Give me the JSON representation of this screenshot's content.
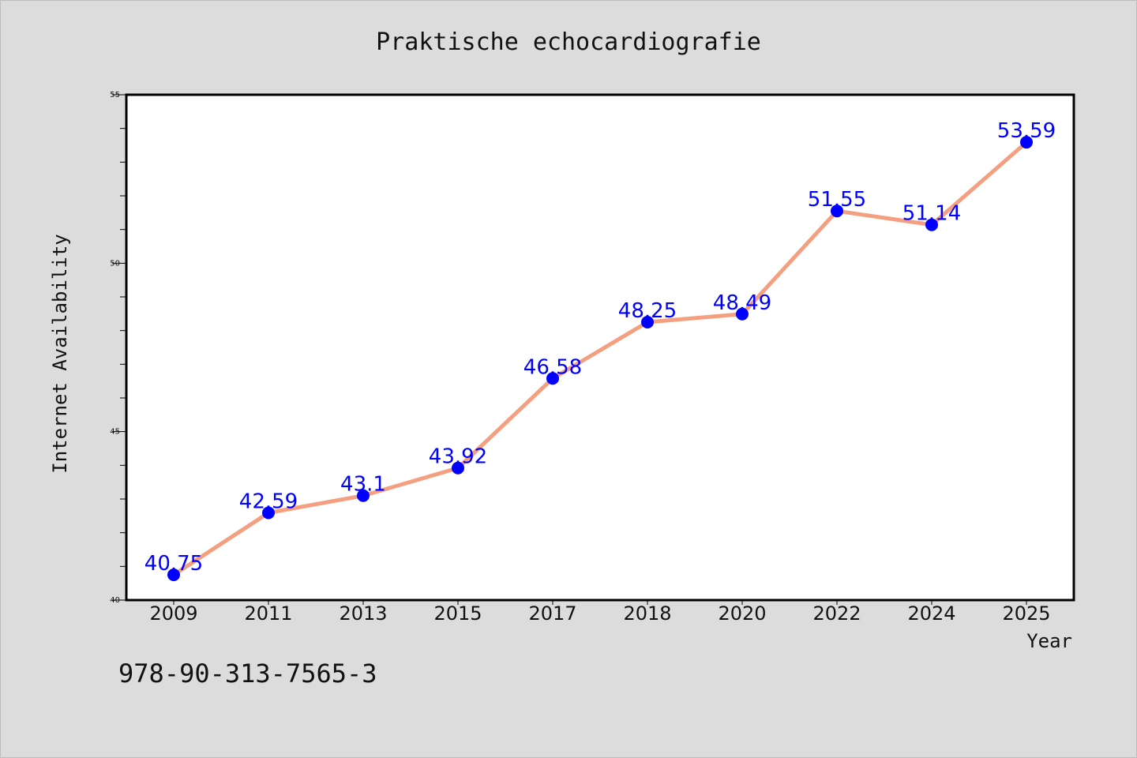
{
  "chart_data": {
    "type": "line",
    "title": "Praktische echocardiografie",
    "xlabel": "Year",
    "ylabel": "Internet Availability",
    "categories": [
      "2009",
      "2011",
      "2013",
      "2015",
      "2017",
      "2018",
      "2020",
      "2022",
      "2024",
      "2025"
    ],
    "values": [
      40.75,
      42.59,
      43.1,
      43.92,
      46.58,
      48.25,
      48.49,
      51.55,
      51.14,
      53.59
    ],
    "data_labels": [
      "40.75",
      "42.59",
      "43.1",
      "43.92",
      "46.58",
      "48.25",
      "48.49",
      "51.55",
      "51.14",
      "53.59"
    ],
    "ylim": [
      40,
      55
    ],
    "y_ticks": [
      "40",
      "45",
      "50",
      "55"
    ],
    "grid": false,
    "legend": "none",
    "colors": {
      "line": "#f4a080",
      "marker": "#0000ff",
      "data_label": "#0000ff",
      "background": "#dcdcdc",
      "plot_area": "#ffffff"
    }
  },
  "footer": {
    "isbn": "978-90-313-7565-3"
  }
}
